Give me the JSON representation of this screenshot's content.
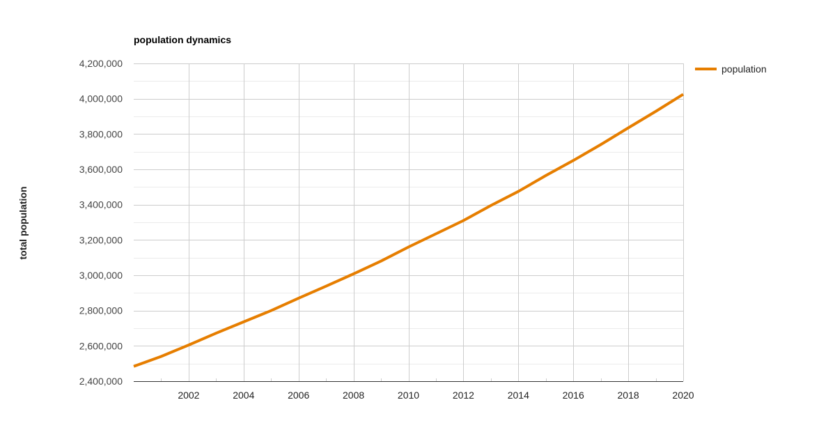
{
  "chart_data": {
    "type": "line",
    "title": "population dynamics",
    "xlabel": "",
    "ylabel": "total population",
    "xlim": [
      2000,
      2020
    ],
    "ylim": [
      2400000,
      4200000
    ],
    "x_ticks": [
      2002,
      2004,
      2006,
      2008,
      2010,
      2012,
      2014,
      2016,
      2018,
      2020
    ],
    "x_tick_labels": [
      "2002",
      "2004",
      "2006",
      "2008",
      "2010",
      "2012",
      "2014",
      "2016",
      "2018",
      "2020"
    ],
    "y_ticks": [
      2400000,
      2600000,
      2800000,
      3000000,
      3200000,
      3400000,
      3600000,
      3800000,
      4000000,
      4200000
    ],
    "y_tick_labels": [
      "2,400,000",
      "2,600,000",
      "2,800,000",
      "3,000,000",
      "3,200,000",
      "3,400,000",
      "3,600,000",
      "3,800,000",
      "4,000,000",
      "4,200,000"
    ],
    "grid": true,
    "legend": "right",
    "color": "#e67e00",
    "series": [
      {
        "name": "population",
        "x": [
          2000,
          2001,
          2002,
          2003,
          2004,
          2005,
          2006,
          2007,
          2008,
          2009,
          2010,
          2011,
          2012,
          2013,
          2014,
          2015,
          2016,
          2017,
          2018,
          2019,
          2020
        ],
        "values": [
          2484000,
          2540000,
          2605000,
          2672000,
          2736000,
          2800000,
          2870000,
          2938000,
          3008000,
          3080000,
          3160000,
          3235000,
          3310000,
          3395000,
          3475000,
          3565000,
          3650000,
          3740000,
          3835000,
          3928000,
          4025000
        ]
      }
    ]
  }
}
